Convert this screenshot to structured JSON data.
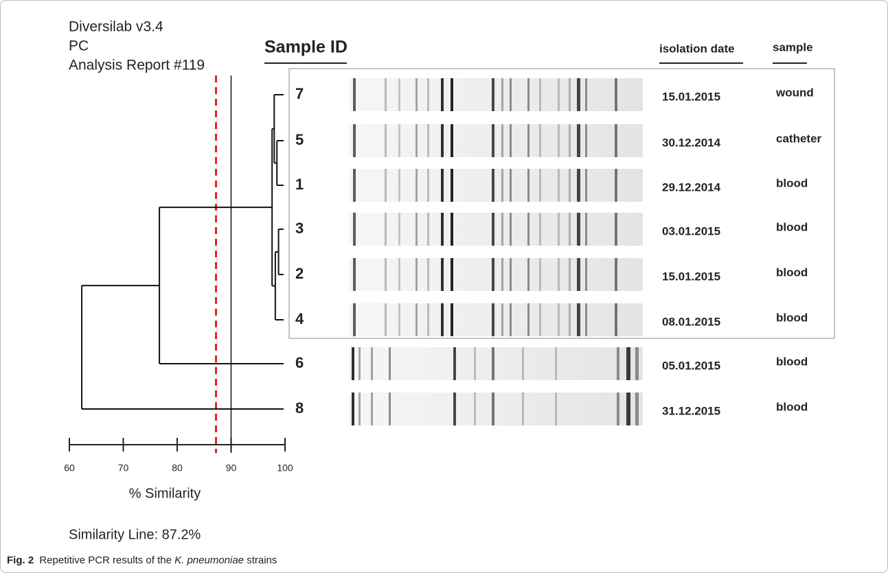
{
  "chart_data": {
    "type": "dendrogram",
    "header": [
      "Diversilab v3.4",
      "PC",
      "Analysis Report #119"
    ],
    "column_titles": {
      "sample_id": "Sample ID",
      "date": "isolation date",
      "sample": "sample"
    },
    "rows": [
      {
        "id": "7",
        "date": "15.01.2015",
        "sample": "wound"
      },
      {
        "id": "5",
        "date": "30.12.2014",
        "sample": "catheter"
      },
      {
        "id": "1",
        "date": "29.12.2014",
        "sample": "blood"
      },
      {
        "id": "3",
        "date": "03.01.2015",
        "sample": "blood"
      },
      {
        "id": "2",
        "date": "15.01.2015",
        "sample": "blood"
      },
      {
        "id": "4",
        "date": "08.01.2015",
        "sample": "blood"
      },
      {
        "id": "6",
        "date": "05.01.2015",
        "sample": "blood"
      },
      {
        "id": "8",
        "date": "31.12.2015",
        "sample": "blood"
      }
    ],
    "tree": {
      "similarity": 62.3,
      "children": [
        {
          "similarity": 76.7,
          "children": [
            {
              "similarity": 97.6,
              "children": [
                {
                  "similarity": 98.0,
                  "children": [
                    {
                      "leaf": 0
                    },
                    {
                      "similarity": 98.5,
                      "children": [
                        {
                          "leaf": 1
                        },
                        {
                          "leaf": 2
                        }
                      ]
                    }
                  ]
                },
                {
                  "similarity": 98.2,
                  "children": [
                    {
                      "similarity": 98.8,
                      "children": [
                        {
                          "leaf": 3
                        },
                        {
                          "leaf": 4
                        }
                      ]
                    },
                    {
                      "leaf": 5
                    }
                  ]
                }
              ]
            },
            {
              "leaf": 6
            }
          ]
        },
        {
          "leaf": 7
        }
      ]
    },
    "xlabel": "% Similarity",
    "xlim": [
      60,
      100
    ],
    "xticks": [
      60,
      70,
      80,
      90,
      100
    ],
    "similarity_line": {
      "value": 87.2,
      "label": "Similarity Line: 87.2%",
      "color": "#e8201c"
    },
    "reference_line": 90,
    "caption": {
      "label": "Fig. 2",
      "before": "Repetitive PCR results of the",
      "italic": "K. pneumoniae",
      "after": "strains"
    }
  }
}
